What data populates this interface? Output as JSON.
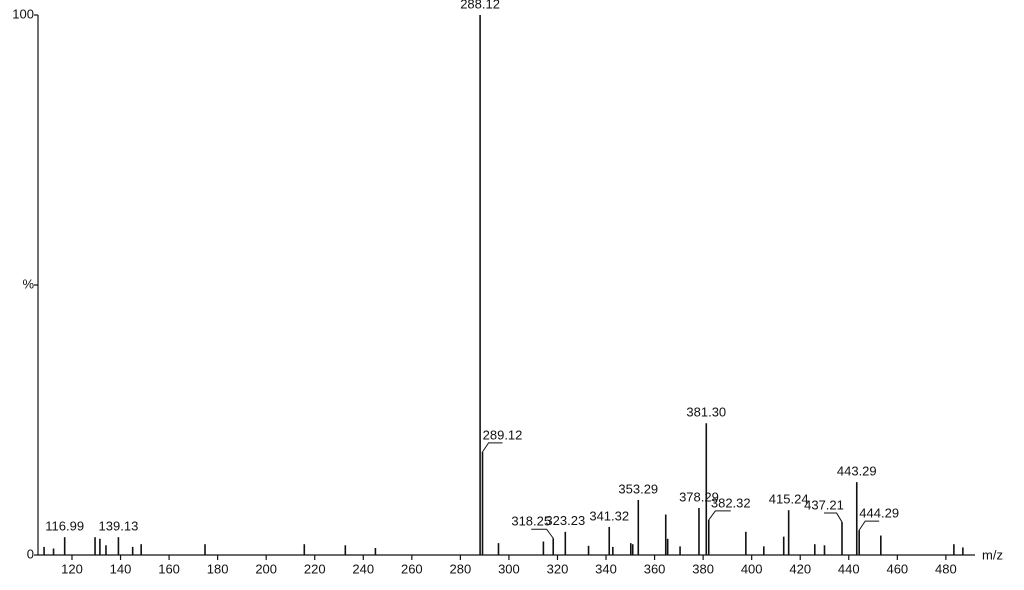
{
  "chart_data": {
    "type": "stem",
    "x_label": "m/z",
    "xlim": [
      106,
      492
    ],
    "xticks": [
      120,
      140,
      160,
      180,
      200,
      220,
      240,
      260,
      280,
      300,
      320,
      340,
      360,
      380,
      400,
      420,
      440,
      460,
      480
    ],
    "ylim": [
      0,
      100
    ],
    "yticks": [
      0,
      {
        "value": 50,
        "label": "%"
      },
      100
    ],
    "color": "#111111",
    "peaks": {
      "x": [
        116.99,
        139.13,
        288.12,
        289.12,
        318.25,
        323.23,
        341.32,
        353.29,
        378.29,
        381.3,
        382.32,
        415.24,
        437.21,
        443.29,
        444.29
      ],
      "labels": [
        "116.99",
        "139.13",
        "288.12",
        "289.12",
        "318.25",
        "323.23",
        "341.32",
        "353.29",
        "378.29",
        "381.30",
        "382.32",
        "415.24",
        "437.21",
        "443.29",
        "444.29"
      ],
      "values": [
        3.3,
        3.3,
        100,
        19.1,
        3.1,
        4.3,
        5.2,
        10.2,
        8.7,
        24.4,
        6.5,
        8.3,
        6.1,
        13.5,
        4.6
      ]
    },
    "minor_peaks": {
      "x": [
        108.5,
        112.4,
        129.5,
        131.5,
        134.0,
        145.0,
        148.5,
        174.8,
        215.7,
        232.6,
        245.0,
        295.7,
        314.2,
        332.8,
        342.8,
        350.2,
        351.0,
        364.6,
        365.4,
        370.5,
        397.6,
        405.0,
        413.2,
        426.0,
        430.0,
        453.2,
        483.3,
        487.0
      ],
      "values": [
        1.5,
        1.2,
        3.3,
        3.0,
        1.8,
        1.5,
        2.0,
        2.0,
        2.0,
        1.8,
        1.3,
        2.2,
        2.5,
        1.7,
        1.5,
        2.2,
        2.0,
        7.5,
        3.0,
        1.6,
        4.3,
        1.6,
        3.4,
        2.0,
        1.8,
        3.6,
        2.0,
        1.4
      ]
    }
  }
}
